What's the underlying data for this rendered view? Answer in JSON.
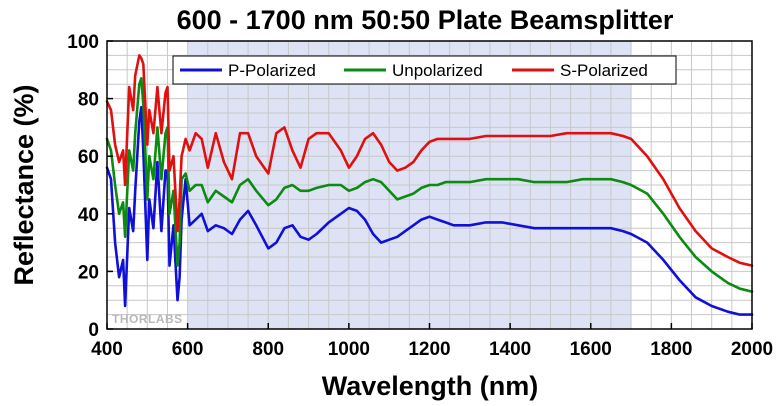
{
  "chart_data": {
    "type": "line",
    "title": "600 - 1700 nm 50:50 Plate Beamsplitter",
    "xlabel": "Wavelength (nm)",
    "ylabel": "Reflectance (%)",
    "xlim": [
      400,
      2000
    ],
    "ylim": [
      0,
      100
    ],
    "x_ticks": [
      400,
      600,
      800,
      1000,
      1200,
      1400,
      1600,
      1800,
      2000
    ],
    "y_ticks": [
      0,
      20,
      40,
      60,
      80,
      100
    ],
    "grid": true,
    "legend_position": "top",
    "highlight_band": {
      "x_range": [
        600,
        1700
      ],
      "color": "#dde3f5"
    },
    "logo_text": "THORLABS",
    "series": [
      {
        "name": "P-Polarized",
        "color": "#1010d8",
        "x": [
          400,
          410,
          420,
          430,
          440,
          445,
          455,
          465,
          470,
          480,
          485,
          490,
          500,
          505,
          515,
          525,
          535,
          545,
          550,
          555,
          565,
          575,
          580,
          585,
          595,
          605,
          620,
          635,
          650,
          670,
          690,
          710,
          730,
          750,
          770,
          800,
          820,
          840,
          860,
          880,
          900,
          920,
          950,
          980,
          1000,
          1020,
          1040,
          1060,
          1080,
          1100,
          1120,
          1140,
          1160,
          1180,
          1200,
          1220,
          1240,
          1260,
          1280,
          1300,
          1340,
          1380,
          1420,
          1460,
          1500,
          1540,
          1580,
          1620,
          1650,
          1680,
          1700,
          1740,
          1780,
          1820,
          1860,
          1900,
          1940,
          1970,
          2000
        ],
        "y": [
          56,
          52,
          30,
          18,
          24,
          8,
          42,
          34,
          48,
          72,
          77,
          62,
          24,
          45,
          35,
          58,
          34,
          55,
          55,
          22,
          36,
          10,
          18,
          38,
          52,
          36,
          38,
          40,
          34,
          36,
          35,
          33,
          38,
          41,
          36,
          28,
          30,
          35,
          36,
          32,
          31,
          33,
          37,
          40,
          42,
          41,
          38,
          33,
          30,
          31,
          32,
          34,
          36,
          38,
          39,
          38,
          37,
          36,
          36,
          36,
          37,
          37,
          36,
          35,
          35,
          35,
          35,
          35,
          35,
          34,
          33,
          30,
          24,
          17,
          11,
          8,
          6,
          5,
          5
        ]
      },
      {
        "name": "Unpolarized",
        "color": "#0d8a12",
        "x": [
          400,
          410,
          420,
          430,
          440,
          445,
          455,
          465,
          470,
          480,
          485,
          490,
          500,
          505,
          515,
          525,
          535,
          545,
          550,
          555,
          565,
          575,
          580,
          585,
          595,
          605,
          620,
          635,
          650,
          670,
          690,
          710,
          730,
          750,
          770,
          800,
          820,
          840,
          860,
          880,
          900,
          920,
          950,
          980,
          1000,
          1020,
          1040,
          1060,
          1080,
          1100,
          1120,
          1140,
          1160,
          1180,
          1200,
          1220,
          1240,
          1260,
          1280,
          1300,
          1340,
          1380,
          1420,
          1460,
          1500,
          1540,
          1580,
          1620,
          1650,
          1680,
          1700,
          1740,
          1780,
          1820,
          1860,
          1900,
          1940,
          1970,
          2000
        ],
        "y": [
          66,
          62,
          50,
          40,
          44,
          32,
          62,
          55,
          68,
          85,
          87,
          78,
          45,
          60,
          52,
          70,
          52,
          68,
          70,
          40,
          48,
          22,
          30,
          52,
          54,
          48,
          50,
          50,
          44,
          48,
          46,
          44,
          50,
          52,
          48,
          43,
          45,
          49,
          50,
          48,
          48,
          49,
          50,
          50,
          48,
          49,
          51,
          52,
          51,
          48,
          45,
          46,
          47,
          49,
          50,
          50,
          51,
          51,
          51,
          51,
          52,
          52,
          52,
          51,
          51,
          51,
          52,
          52,
          52,
          51,
          50,
          47,
          40,
          32,
          25,
          20,
          16,
          14,
          13
        ]
      },
      {
        "name": "S-Polarized",
        "color": "#e01010",
        "x": [
          400,
          410,
          420,
          430,
          440,
          445,
          455,
          465,
          470,
          480,
          485,
          490,
          500,
          505,
          515,
          525,
          535,
          545,
          550,
          555,
          565,
          575,
          580,
          585,
          595,
          605,
          620,
          635,
          650,
          670,
          690,
          710,
          730,
          750,
          770,
          800,
          820,
          840,
          860,
          880,
          900,
          920,
          950,
          980,
          1000,
          1020,
          1040,
          1060,
          1080,
          1100,
          1120,
          1140,
          1160,
          1180,
          1200,
          1220,
          1240,
          1260,
          1280,
          1300,
          1340,
          1380,
          1420,
          1460,
          1500,
          1540,
          1580,
          1620,
          1650,
          1680,
          1700,
          1740,
          1780,
          1820,
          1860,
          1900,
          1940,
          1970,
          2000
        ],
        "y": [
          79,
          76,
          64,
          58,
          62,
          50,
          84,
          76,
          88,
          95,
          94,
          92,
          64,
          76,
          68,
          84,
          68,
          82,
          84,
          55,
          60,
          34,
          45,
          60,
          66,
          62,
          68,
          66,
          56,
          68,
          58,
          52,
          68,
          68,
          60,
          54,
          68,
          70,
          62,
          56,
          66,
          68,
          68,
          62,
          56,
          60,
          66,
          68,
          64,
          58,
          55,
          56,
          58,
          62,
          65,
          66,
          66,
          66,
          66,
          66,
          67,
          67,
          67,
          67,
          67,
          68,
          68,
          68,
          68,
          67,
          66,
          60,
          52,
          42,
          34,
          28,
          25,
          23,
          22
        ]
      }
    ]
  }
}
